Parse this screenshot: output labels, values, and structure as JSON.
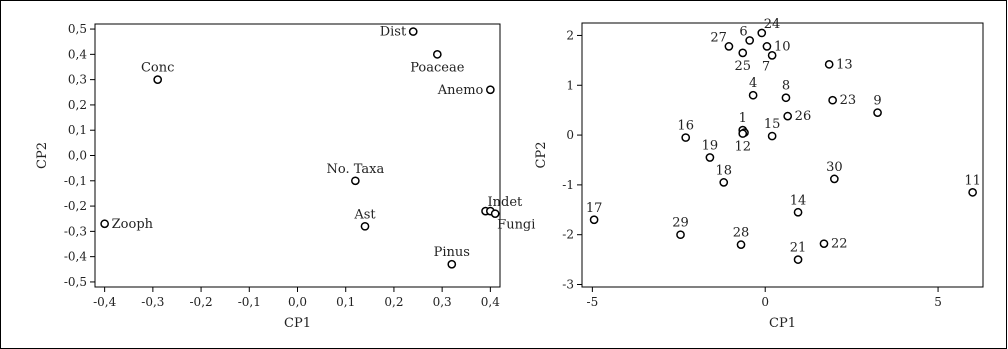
{
  "chart_data": [
    {
      "type": "scatter",
      "title": "",
      "xlabel": "CP1",
      "ylabel": "CP2",
      "xlim": [
        -0.42,
        0.42
      ],
      "ylim": [
        -0.52,
        0.52
      ],
      "x_ticks": [
        -0.4,
        -0.3,
        -0.2,
        -0.1,
        0.0,
        0.1,
        0.2,
        0.3,
        0.4
      ],
      "x_tick_labels": [
        "-0,4",
        "-0,3",
        "-0,2",
        "-0,1",
        "0,0",
        "0,1",
        "0,2",
        "0,3",
        "0,4"
      ],
      "y_ticks": [
        0.5,
        0.4,
        0.3,
        0.2,
        0.1,
        0.0,
        -0.1,
        -0.2,
        -0.3,
        -0.4,
        -0.5
      ],
      "y_tick_labels": [
        "0,5",
        "0,4",
        "0,3",
        "0,2",
        "0,1",
        "0,0",
        "-0,1",
        "-0,2",
        "-0,3",
        "-0,4",
        "-0,5"
      ],
      "points": [
        {
          "label": "Dist",
          "x": 0.24,
          "y": 0.49,
          "pos": "left"
        },
        {
          "label": "Poaceae",
          "x": 0.29,
          "y": 0.4,
          "pos": "below"
        },
        {
          "label": "Conc",
          "x": -0.29,
          "y": 0.3,
          "pos": "above"
        },
        {
          "label": "Anemo",
          "x": 0.4,
          "y": 0.26,
          "pos": "left"
        },
        {
          "label": "No. Taxa",
          "x": 0.12,
          "y": -0.1,
          "pos": "above"
        },
        {
          "label": "Indet",
          "x": 0.39,
          "y": -0.22,
          "pos": "above-right"
        },
        {
          "label": "",
          "x": 0.4,
          "y": -0.22,
          "pos": "none"
        },
        {
          "label": "Fungi",
          "x": 0.41,
          "y": -0.23,
          "pos": "below-right"
        },
        {
          "label": "Zooph",
          "x": -0.4,
          "y": -0.27,
          "pos": "right"
        },
        {
          "label": "Ast",
          "x": 0.14,
          "y": -0.28,
          "pos": "above"
        },
        {
          "label": "Pinus",
          "x": 0.32,
          "y": -0.43,
          "pos": "above"
        }
      ]
    },
    {
      "type": "scatter",
      "title": "",
      "xlabel": "CP1",
      "ylabel": "CP2",
      "xlim": [
        -5.3,
        6.3
      ],
      "ylim": [
        -3.05,
        2.25
      ],
      "x_ticks": [
        -5,
        0,
        5
      ],
      "x_tick_labels": [
        "-5",
        "0",
        "5"
      ],
      "y_ticks": [
        2,
        1,
        0,
        -1,
        -2,
        -3
      ],
      "y_tick_labels": [
        "2",
        "1",
        "0",
        "-1",
        "-2",
        "-3"
      ],
      "points": [
        {
          "label": "24",
          "x": -0.1,
          "y": 2.05,
          "pos": "above-right"
        },
        {
          "label": "6",
          "x": -0.45,
          "y": 1.9,
          "pos": "above-left"
        },
        {
          "label": "27",
          "x": -1.05,
          "y": 1.78,
          "pos": "above-left"
        },
        {
          "label": "10",
          "x": 0.05,
          "y": 1.78,
          "pos": "right"
        },
        {
          "label": "25",
          "x": -0.65,
          "y": 1.65,
          "pos": "below"
        },
        {
          "label": "7",
          "x": 0.2,
          "y": 1.6,
          "pos": "below-left"
        },
        {
          "label": "13",
          "x": 1.85,
          "y": 1.42,
          "pos": "right"
        },
        {
          "label": "4",
          "x": -0.35,
          "y": 0.8,
          "pos": "above"
        },
        {
          "label": "8",
          "x": 0.6,
          "y": 0.75,
          "pos": "above"
        },
        {
          "label": "23",
          "x": 1.95,
          "y": 0.7,
          "pos": "right"
        },
        {
          "label": "9",
          "x": 3.25,
          "y": 0.45,
          "pos": "above"
        },
        {
          "label": "26",
          "x": 0.65,
          "y": 0.38,
          "pos": "right"
        },
        {
          "label": "1",
          "x": -0.65,
          "y": 0.1,
          "pos": "above"
        },
        {
          "label": "",
          "x": -0.6,
          "y": 0.05,
          "pos": "none"
        },
        {
          "label": "12",
          "x": -0.65,
          "y": 0.03,
          "pos": "below"
        },
        {
          "label": "15",
          "x": 0.2,
          "y": -0.02,
          "pos": "above"
        },
        {
          "label": "16",
          "x": -2.3,
          "y": -0.05,
          "pos": "above"
        },
        {
          "label": "19",
          "x": -1.6,
          "y": -0.45,
          "pos": "above"
        },
        {
          "label": "30",
          "x": 2.0,
          "y": -0.88,
          "pos": "above"
        },
        {
          "label": "18",
          "x": -1.2,
          "y": -0.95,
          "pos": "above"
        },
        {
          "label": "11",
          "x": 6.0,
          "y": -1.15,
          "pos": "above"
        },
        {
          "label": "14",
          "x": 0.95,
          "y": -1.55,
          "pos": "above"
        },
        {
          "label": "17",
          "x": -4.95,
          "y": -1.7,
          "pos": "above"
        },
        {
          "label": "29",
          "x": -2.45,
          "y": -2.0,
          "pos": "above"
        },
        {
          "label": "22",
          "x": 1.7,
          "y": -2.18,
          "pos": "right"
        },
        {
          "label": "28",
          "x": -0.7,
          "y": -2.2,
          "pos": "above"
        },
        {
          "label": "21",
          "x": 0.95,
          "y": -2.5,
          "pos": "above"
        }
      ]
    }
  ]
}
